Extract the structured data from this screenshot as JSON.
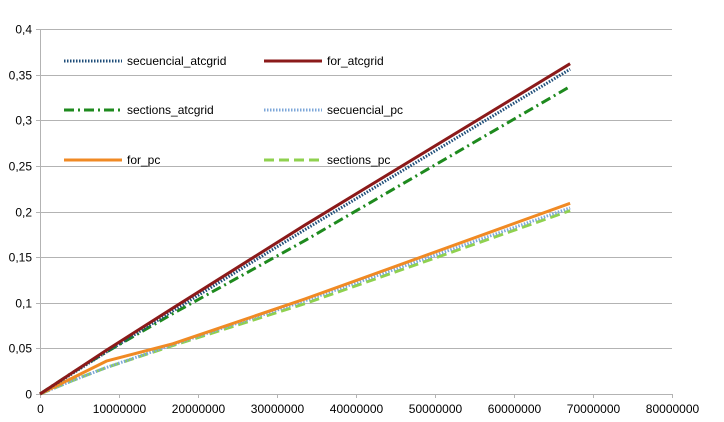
{
  "chart_data": {
    "type": "line",
    "title": "",
    "xlabel": "",
    "ylabel": "",
    "xlim": [
      0,
      80000000
    ],
    "ylim": [
      0,
      0.4
    ],
    "x_ticks": [
      0,
      10000000,
      20000000,
      30000000,
      40000000,
      50000000,
      60000000,
      70000000,
      80000000
    ],
    "x_tick_labels": [
      "0",
      "10000000",
      "20000000",
      "30000000",
      "40000000",
      "50000000",
      "60000000",
      "70000000",
      "80000000"
    ],
    "y_ticks": [
      0,
      0.05,
      0.1,
      0.15,
      0.2,
      0.25,
      0.3,
      0.35,
      0.4
    ],
    "y_tick_labels": [
      "0",
      "0,05",
      "0,1",
      "0,15",
      "0,2",
      "0,25",
      "0,3",
      "0,35",
      "0,4"
    ],
    "grid": "horizontal",
    "legend_position": "top-left, inside plot, 2 columns",
    "series": [
      {
        "name": "secuencial_atcgrid",
        "color": "#1f4e79",
        "dash": "dotted",
        "x": [
          0,
          4200000,
          8400000,
          16800000,
          33500000,
          67100000
        ],
        "y": [
          0,
          0.023,
          0.046,
          0.091,
          0.18,
          0.356
        ]
      },
      {
        "name": "for_atcgrid",
        "color": "#8b1a1a",
        "dash": "solid",
        "x": [
          0,
          4200000,
          8400000,
          16800000,
          33500000,
          67100000
        ],
        "y": [
          0,
          0.024,
          0.048,
          0.094,
          0.185,
          0.362
        ]
      },
      {
        "name": "sections_atcgrid",
        "color": "#1e8a1e",
        "dash": "dash-dot",
        "x": [
          0,
          4200000,
          8400000,
          16800000,
          33500000,
          67100000
        ],
        "y": [
          0,
          0.024,
          0.046,
          0.088,
          0.168,
          0.337
        ]
      },
      {
        "name": "secuencial_pc",
        "color": "#7da7d9",
        "dash": "dotted",
        "x": [
          0,
          4200000,
          8400000,
          16800000,
          33500000,
          67100000
        ],
        "y": [
          0,
          0.015,
          0.029,
          0.054,
          0.102,
          0.204
        ]
      },
      {
        "name": "for_pc",
        "color": "#f08a24",
        "dash": "solid",
        "x": [
          0,
          4200000,
          8400000,
          16800000,
          33500000,
          67100000
        ],
        "y": [
          0,
          0.018,
          0.036,
          0.055,
          0.104,
          0.209
        ]
      },
      {
        "name": "sections_pc",
        "color": "#8fd14f",
        "dash": "dashed",
        "x": [
          0,
          4200000,
          8400000,
          16800000,
          33500000,
          67100000
        ],
        "y": [
          0,
          0.015,
          0.029,
          0.053,
          0.099,
          0.201
        ]
      }
    ]
  }
}
